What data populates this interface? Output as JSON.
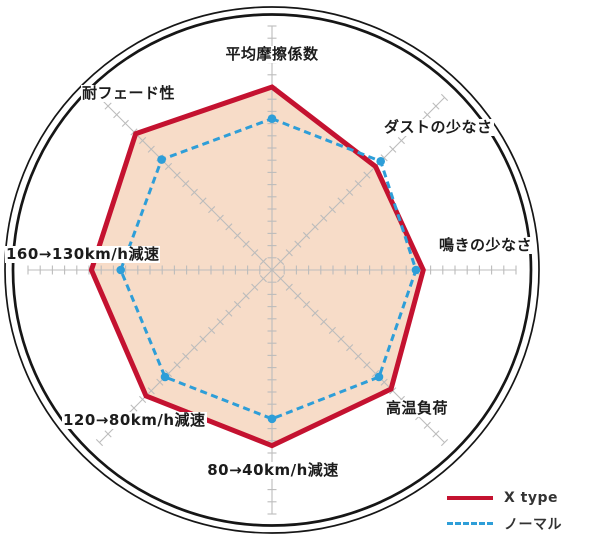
{
  "chart_data": {
    "type": "radar",
    "title": "",
    "axes": [
      {
        "label": "平均摩擦係数"
      },
      {
        "label": "ダストの少なさ"
      },
      {
        "label": "鳴きの少なさ"
      },
      {
        "label": "高温負荷"
      },
      {
        "label": "80→40km/h減速"
      },
      {
        "label": "120→80km/h減速"
      },
      {
        "label": "160→130km/h減速"
      },
      {
        "label": "耐フェード性"
      }
    ],
    "axis_order": "clockwise-from-top",
    "scale": {
      "min": 0,
      "max": 10,
      "tick_step": 0.5,
      "gridlines": false
    },
    "series": [
      {
        "name": "X type",
        "color": "#c41230",
        "style": "solid",
        "filled": true,
        "values": [
          7.5,
          6.0,
          6.2,
          6.9,
          7.2,
          7.3,
          7.4,
          7.9
        ]
      },
      {
        "name": "ノーマル",
        "color": "#2e9ed8",
        "style": "dashed",
        "filled": false,
        "markers": true,
        "values": [
          6.2,
          6.3,
          5.9,
          6.2,
          6.1,
          6.2,
          6.2,
          6.4
        ]
      }
    ],
    "fill_color": "#f7dcc8",
    "grid_color": "#bcbcbc",
    "ring_color": "#161616",
    "legend_position": "bottom-right"
  },
  "legend": {
    "x_type_label": "X type",
    "normal_label": "ノーマル"
  }
}
